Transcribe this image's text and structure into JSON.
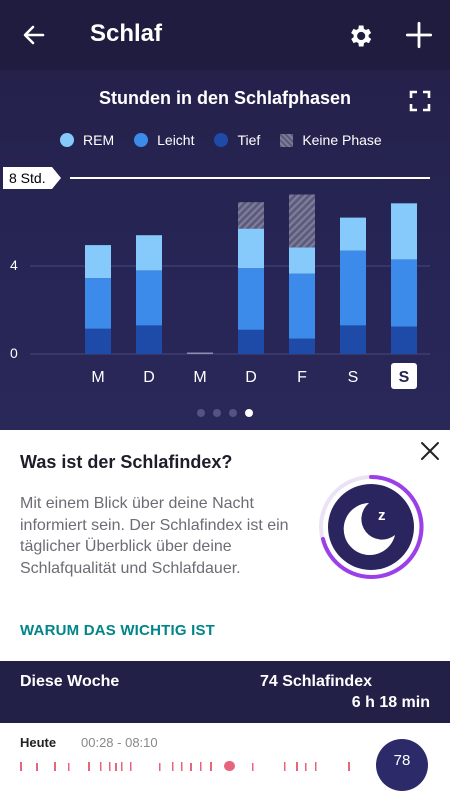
{
  "header": {
    "title": "Schlaf",
    "back_icon": "arrow-left-icon",
    "settings_icon": "gear-icon",
    "add_icon": "plus-icon"
  },
  "chart_section": {
    "title": "Stunden in den Schlafphasen",
    "expand_icon": "fullscreen-icon",
    "legend": [
      {
        "label": "REM",
        "color": "#86c9fb"
      },
      {
        "label": "Leicht",
        "color": "#3c8bea"
      },
      {
        "label": "Tief",
        "color": "#1e4aa8"
      },
      {
        "label": "Keine Phase",
        "color": "#5f5e7d"
      }
    ],
    "goal_label": "8 Std.",
    "y_ticks": [
      "4",
      "0"
    ],
    "page_indicator": {
      "count": 4,
      "active": 4
    }
  },
  "chart_data": {
    "type": "bar",
    "stacked": true,
    "categories": [
      "M",
      "D",
      "M",
      "D",
      "F",
      "S",
      "S"
    ],
    "selected_category_index": 6,
    "ylim": [
      0,
      8
    ],
    "goal": 8,
    "series": [
      {
        "name": "Tief",
        "values": [
          1.15,
          1.3,
          0,
          1.1,
          0.7,
          1.3,
          1.25
        ]
      },
      {
        "name": "Leicht",
        "values": [
          2.3,
          2.5,
          0,
          2.8,
          2.95,
          3.4,
          3.05
        ]
      },
      {
        "name": "REM",
        "values": [
          1.5,
          1.6,
          0,
          1.8,
          1.2,
          1.5,
          2.55
        ]
      },
      {
        "name": "Keine Phase",
        "values": [
          0,
          0,
          0,
          1.2,
          2.4,
          0,
          0
        ]
      }
    ]
  },
  "info_card": {
    "title": "Was ist der Schlafindex?",
    "body": "Mit einem Blick über deine Nacht informiert sein. Der Schla­findex ist ein täglicher Überblick über deine Schlafqualität und Schlafdauer.",
    "link": "WARUM DAS WICHTIG IST",
    "close_icon": "close-icon",
    "graphic_icon": "moon-sleep-icon"
  },
  "week_summary": {
    "label": "Diese Woche",
    "score": "74 Schlafindex",
    "duration": "6 h 18 min"
  },
  "today": {
    "label": "Heute",
    "time_range": "00:28 - 08:10",
    "score": "78"
  },
  "colors": {
    "background": "#252352",
    "accent": "#00858a",
    "ring": "#9b3fe8"
  }
}
